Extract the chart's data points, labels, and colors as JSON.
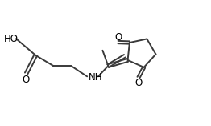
{
  "bg_color": "#ffffff",
  "line_color": "#3a3a3a",
  "text_color": "#000000",
  "line_width": 1.4,
  "font_size": 8.5,
  "fig_width": 2.62,
  "fig_height": 1.57,
  "dpi": 100,
  "xlim": [
    0,
    9.5
  ],
  "ylim": [
    0,
    5.7
  ]
}
